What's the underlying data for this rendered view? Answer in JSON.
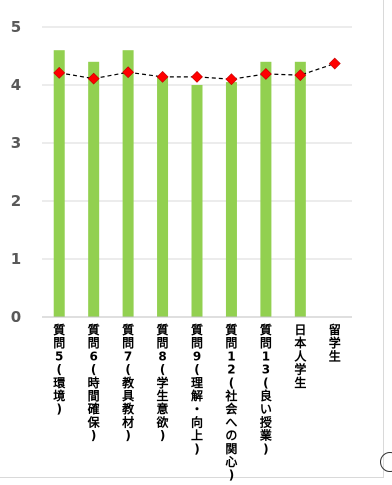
{
  "chart_data": {
    "type": "bar",
    "categories": [
      "質問5(環境)",
      "質問6(時間確保)",
      "質問7(教具教材)",
      "質問8(学生意欲)",
      "質問9(理解・向上)",
      "質問12(社会への関心)",
      "質問13(良い授業)",
      "日本人学生",
      "留学生"
    ],
    "ylim": [
      0,
      5
    ],
    "yticks": [
      0,
      1,
      2,
      3,
      4,
      5
    ],
    "grid": true,
    "legend": "none",
    "series": [
      {
        "type": "bar",
        "color": "#92d050",
        "values": [
          4.6,
          4.4,
          4.6,
          4.15,
          4.0,
          4.05,
          4.4,
          4.4,
          null
        ]
      },
      {
        "type": "line",
        "color": "#000000",
        "marker_color": "#ff0000",
        "dashed": true,
        "values": [
          4.21,
          4.11,
          4.22,
          4.14,
          4.14,
          4.1,
          4.19,
          4.17,
          4.37
        ]
      }
    ]
  }
}
